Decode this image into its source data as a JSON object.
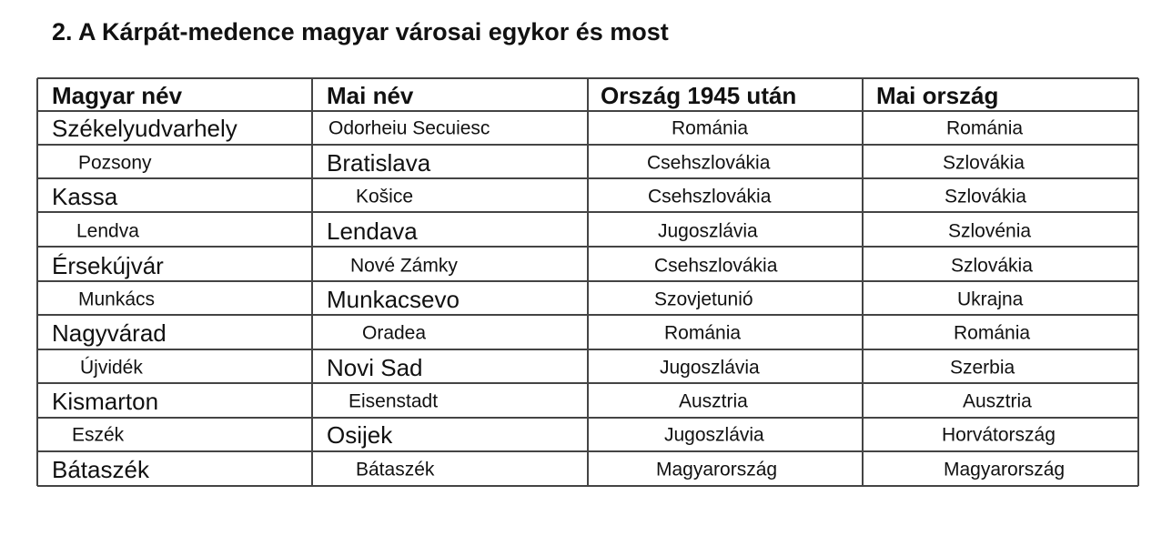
{
  "title": "2. A Kárpát-medence magyar városai egykor és most",
  "table": {
    "header": [
      "Magyar név",
      "Mai név",
      "Ország 1945 után",
      "Mai ország"
    ],
    "rows": [
      [
        "Székelyudvarhely",
        "Odorheiu Secuiesc",
        "Románia",
        "Románia"
      ],
      [
        "Pozsony",
        "Bratislava",
        "Csehszlovákia",
        "Szlovákia"
      ],
      [
        "Kassa",
        "Košice",
        "Csehszlovákia",
        "Szlovákia"
      ],
      [
        "Lendva",
        "Lendava",
        "Jugoszlávia",
        "Szlovénia"
      ],
      [
        "Érsekújvár",
        "Nové Zámky",
        "Csehszlovákia",
        "Szlovákia"
      ],
      [
        "Munkács",
        "Munkacsevo",
        "Szovjetunió",
        "Ukrajna"
      ],
      [
        "Nagyvárad",
        "Oradea",
        "Románia",
        "Románia"
      ],
      [
        "Újvidék",
        "Novi Sad",
        "Jugoszlávia",
        "Szerbia"
      ],
      [
        "Kismarton",
        "Eisenstadt",
        "Ausztria",
        "Ausztria"
      ],
      [
        "Eszék",
        "Osijek",
        "Jugoszlávia",
        "Horvátország"
      ],
      [
        "Bátaszék",
        "Bátaszék",
        "Magyarország",
        "Magyarország"
      ]
    ]
  }
}
